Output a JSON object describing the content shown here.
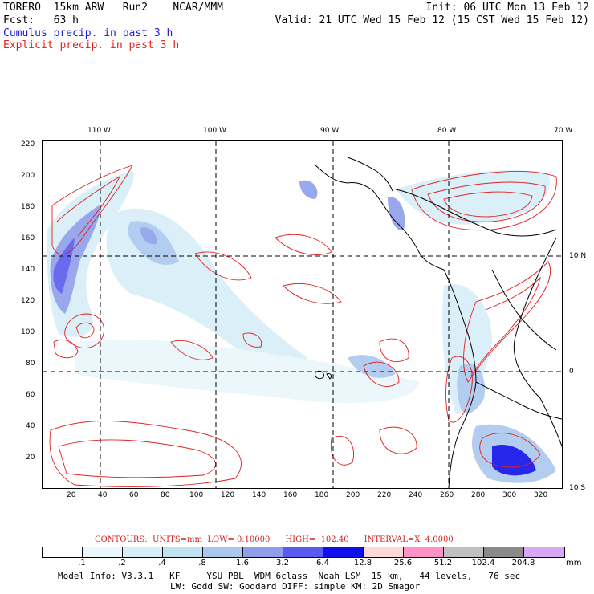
{
  "header": {
    "model": "TORERO",
    "resolution": "15km ARW",
    "run": "Run2",
    "org": "NCAR/MMM",
    "fcst_label": "Fcst:",
    "fcst_value": "63 h",
    "init": "Init: 06 UTC Mon 13 Feb 12",
    "valid": "Valid: 21 UTC Wed 15 Feb 12 (15 CST Wed 15 Feb 12)",
    "field1": "Cumulus precip. in past 3 h",
    "field2": "Explicit precip. in past 3 h"
  },
  "map": {
    "top_lon_labels": [
      "110 W",
      "100 W",
      "90 W",
      "80 W",
      "70 W"
    ],
    "right_lat_labels": [
      "10 N",
      "0",
      "10 S"
    ],
    "left_grid_labels": [
      "220",
      "200",
      "180",
      "160",
      "140",
      "120",
      "100",
      "80",
      "60",
      "40",
      "20"
    ],
    "bottom_grid_labels": [
      "20",
      "40",
      "60",
      "80",
      "100",
      "120",
      "140",
      "160",
      "180",
      "200",
      "220",
      "240",
      "260",
      "280",
      "300",
      "320"
    ],
    "x_range": [
      0,
      330
    ],
    "y_range": [
      0,
      223
    ]
  },
  "legend": {
    "contours": "CONTOURS:  UNITS=mm  LOW= 0.10000      HIGH=  102.40      INTERVAL=X  4.0000",
    "bins": [
      ".1",
      ".2",
      ".4",
      ".8",
      "1.6",
      "3.2",
      "6.4",
      "12.8",
      "25.6",
      "51.2",
      "102.4",
      "204.8"
    ],
    "colors": [
      "#ffffff",
      "#eaf7fb",
      "#d6eef8",
      "#c2e2f3",
      "#aac8ee",
      "#8f9eea",
      "#5a5af0",
      "#1010ea",
      "#ffd8d8",
      "#ff93c8",
      "#c0c0c0",
      "#8a8a8a",
      "#d8a8f4"
    ],
    "unit": "mm"
  },
  "footer": {
    "line1": "Model Info: V3.3.1   KF     YSU PBL  WDM 6class  Noah LSM  15 km,   44 levels,   76 sec",
    "line2": "LW: Godd SW: Goddard DIFF: simple KM: 2D Smagor"
  }
}
